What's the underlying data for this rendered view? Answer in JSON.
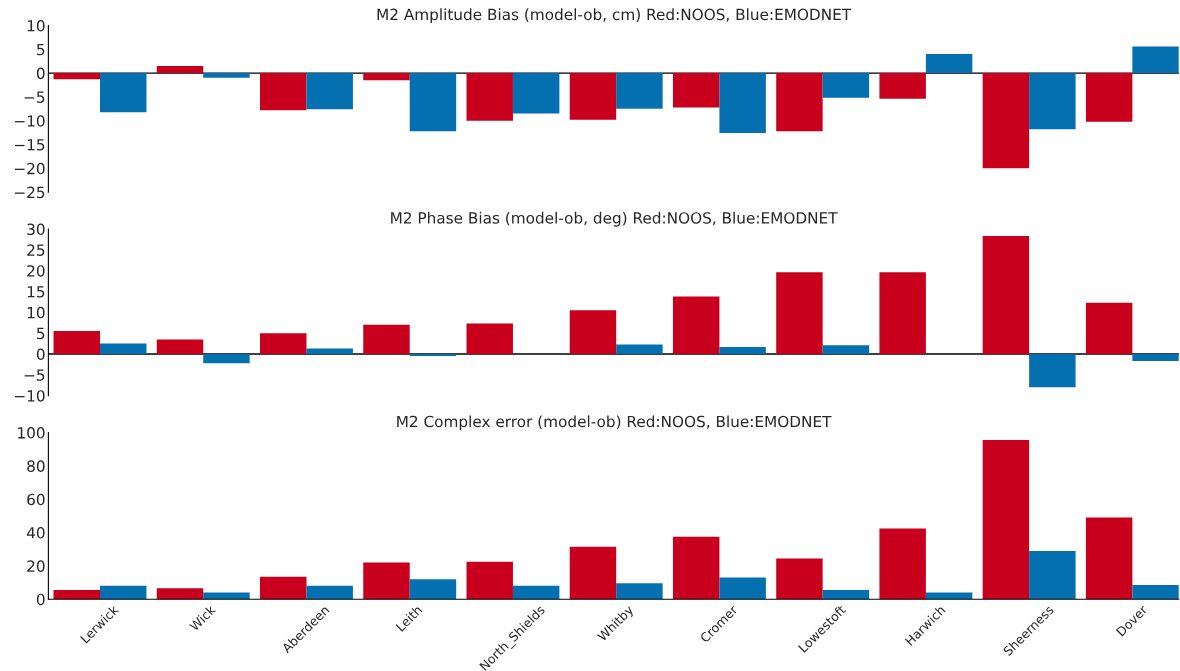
{
  "chart_data": [
    {
      "type": "bar",
      "title": "M2 Amplitude Bias (model-ob, cm) Red:NOOS, Blue:EMODNET",
      "categories": [
        null,
        null,
        null,
        null,
        null,
        null,
        null,
        null,
        null,
        null,
        null
      ],
      "series": [
        {
          "color": "#c8001e",
          "values": [
            -1.3,
            1.5,
            -7.8,
            -1.5,
            -10,
            -9.8,
            -7.2,
            -12.2,
            -5.4,
            -20,
            -10.2
          ]
        },
        {
          "color": "#0570b0",
          "values": [
            -8.2,
            -1,
            -7.6,
            -12.2,
            -8.5,
            -7.5,
            -12.6,
            -5.2,
            4,
            -11.8,
            5.6
          ]
        }
      ],
      "ylim": [
        -25,
        10
      ],
      "yticks": [
        -25,
        -20,
        -15,
        -10,
        -5,
        0,
        5,
        10
      ],
      "tick_labels": "y",
      "ref_lines": [
        {
          "axis": "y",
          "value": 0,
          "color": "#000000"
        }
      ]
    },
    {
      "type": "bar",
      "title": "M2 Phase Bias (model-ob, deg) Red:NOOS, Blue:EMODNET",
      "categories": [
        null,
        null,
        null,
        null,
        null,
        null,
        null,
        null,
        null,
        null,
        null
      ],
      "series": [
        {
          "color": "#c8001e",
          "values": [
            5.5,
            3.5,
            5,
            7,
            7.3,
            10.5,
            13.8,
            19.6,
            19.6,
            28.3,
            12.3
          ]
        },
        {
          "color": "#0570b0",
          "values": [
            2.5,
            -2.2,
            1.3,
            -0.5,
            0,
            2.3,
            1.7,
            2.1,
            0,
            -8,
            -1.7
          ]
        }
      ],
      "ylim": [
        -10,
        30
      ],
      "yticks": [
        -10,
        -5,
        0,
        5,
        10,
        15,
        20,
        25,
        30
      ],
      "tick_labels": "y",
      "ref_lines": [
        {
          "axis": "y",
          "value": 0,
          "color": "#000000"
        }
      ]
    },
    {
      "type": "bar",
      "title": "M2 Complex error (model-ob) Red:NOOS, Blue:EMODNET",
      "categories": [
        "Lerwick",
        "Wick",
        "Aberdeen",
        "Leith",
        "North_Shields",
        "Whitby",
        "Cromer",
        "Lowestoft",
        "Harwich",
        "Sheerness",
        "Dover"
      ],
      "series": [
        {
          "color": "#c8001e",
          "values": [
            5.5,
            6.5,
            13.5,
            22,
            22.5,
            31.5,
            37.5,
            24.5,
            42.5,
            95.5,
            49
          ]
        },
        {
          "color": "#0570b0",
          "values": [
            8,
            4,
            8,
            12,
            8,
            9.5,
            13,
            5.5,
            4,
            29,
            8.5
          ]
        }
      ],
      "ylim": [
        0,
        100
      ],
      "yticks": [
        0,
        20,
        40,
        60,
        80,
        100
      ]
    }
  ]
}
